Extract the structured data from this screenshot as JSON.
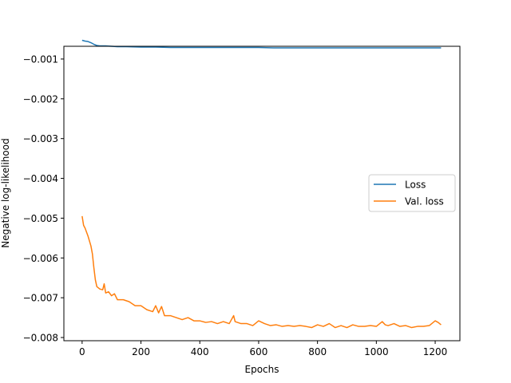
{
  "chart_data": {
    "type": "line",
    "title": "",
    "xlabel": "Epochs",
    "ylabel": "Negative log-likelihood",
    "xlim": [
      -62,
      1284
    ],
    "ylim": [
      -0.00808,
      -0.00068
    ],
    "xticks": [
      0,
      200,
      400,
      600,
      800,
      1000,
      1200
    ],
    "xtick_labels": [
      "0",
      "200",
      "400",
      "600",
      "800",
      "1000",
      "1200"
    ],
    "yticks": [
      -0.001,
      -0.002,
      -0.003,
      -0.004,
      -0.005,
      -0.006,
      -0.007,
      -0.008
    ],
    "ytick_labels": [
      "−0.001",
      "−0.002",
      "−0.003",
      "−0.004",
      "−0.005",
      "−0.006",
      "−0.007",
      "−0.008"
    ],
    "grid": false,
    "legend_position": "center-right",
    "series": [
      {
        "name": "Loss",
        "color": "#1f77b4",
        "x": [
          0,
          10,
          20,
          30,
          40,
          50,
          60,
          80,
          100,
          120,
          150,
          200,
          250,
          300,
          350,
          400,
          450,
          500,
          550,
          600,
          650,
          700,
          750,
          800,
          850,
          900,
          950,
          1000,
          1050,
          1100,
          1150,
          1200,
          1220
        ],
        "y": [
          -0.00053,
          -0.00055,
          -0.00056,
          -0.00059,
          -0.00063,
          -0.00066,
          -0.00067,
          -0.00067,
          -0.00068,
          -0.00069,
          -0.00069,
          -0.0007,
          -0.0007,
          -0.00071,
          -0.00071,
          -0.00071,
          -0.00071,
          -0.00071,
          -0.00071,
          -0.00071,
          -0.00072,
          -0.00072,
          -0.00072,
          -0.00072,
          -0.00072,
          -0.00072,
          -0.00072,
          -0.00072,
          -0.00072,
          -0.00072,
          -0.00072,
          -0.00072,
          -0.00072
        ]
      },
      {
        "name": "Val. loss",
        "color": "#ff7f0e",
        "x": [
          0,
          5,
          10,
          20,
          30,
          35,
          40,
          45,
          50,
          60,
          70,
          75,
          80,
          90,
          100,
          110,
          120,
          140,
          160,
          180,
          200,
          220,
          240,
          250,
          260,
          270,
          280,
          300,
          320,
          340,
          360,
          380,
          400,
          420,
          440,
          460,
          480,
          500,
          515,
          520,
          540,
          560,
          580,
          600,
          620,
          640,
          660,
          680,
          700,
          720,
          740,
          760,
          780,
          800,
          820,
          840,
          860,
          880,
          900,
          920,
          940,
          960,
          980,
          1000,
          1020,
          1030,
          1040,
          1060,
          1080,
          1100,
          1120,
          1140,
          1160,
          1180,
          1200,
          1210,
          1220
        ],
        "y": [
          -0.00495,
          -0.00518,
          -0.00525,
          -0.00545,
          -0.0057,
          -0.0059,
          -0.00625,
          -0.00655,
          -0.00672,
          -0.00678,
          -0.0068,
          -0.00665,
          -0.00688,
          -0.00685,
          -0.00695,
          -0.0069,
          -0.00705,
          -0.00705,
          -0.0071,
          -0.0072,
          -0.0072,
          -0.0073,
          -0.00735,
          -0.0072,
          -0.00738,
          -0.00722,
          -0.00745,
          -0.00745,
          -0.0075,
          -0.00755,
          -0.0075,
          -0.00758,
          -0.00758,
          -0.00762,
          -0.0076,
          -0.00765,
          -0.0076,
          -0.00765,
          -0.00745,
          -0.0076,
          -0.00765,
          -0.00765,
          -0.0077,
          -0.00758,
          -0.00765,
          -0.0077,
          -0.00768,
          -0.00772,
          -0.0077,
          -0.00772,
          -0.0077,
          -0.00772,
          -0.00775,
          -0.00768,
          -0.00772,
          -0.00765,
          -0.00775,
          -0.0077,
          -0.00775,
          -0.00768,
          -0.00772,
          -0.00772,
          -0.0077,
          -0.00772,
          -0.0076,
          -0.00768,
          -0.0077,
          -0.00765,
          -0.00772,
          -0.0077,
          -0.00775,
          -0.00772,
          -0.00772,
          -0.0077,
          -0.00758,
          -0.00762,
          -0.00768
        ]
      }
    ]
  }
}
